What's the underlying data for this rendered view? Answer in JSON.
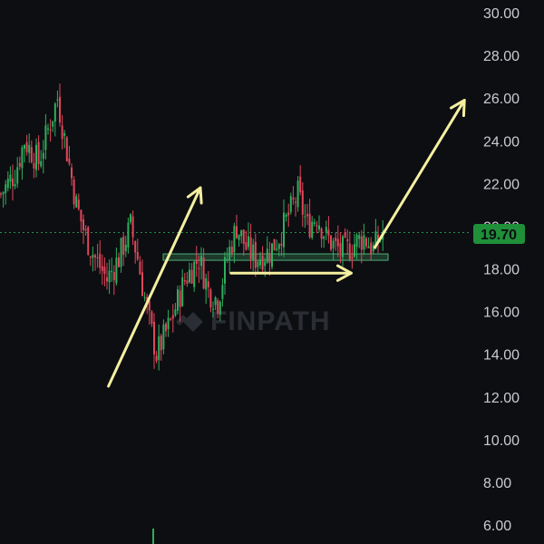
{
  "watermark": {
    "text": "FINPATH",
    "icon": "finpath-logo-icon"
  },
  "price_tag": {
    "value": "19.70",
    "color": "#1f8f3a"
  },
  "colors": {
    "background": "#0d0e12",
    "up_candle": "#2fae5c",
    "down_candle": "#e0475b",
    "annotation": "#f4f0a0",
    "current_price_line": "#2fae5c",
    "support_zone": "#2f6f4a"
  },
  "chart_data": {
    "type": "candlestick",
    "y_axis": {
      "position": "right",
      "min": 6,
      "max": 30,
      "ticks": [
        "30.00",
        "28.00",
        "26.00",
        "24.00",
        "22.00",
        "20.00",
        "18.00",
        "16.00",
        "14.00",
        "12.00",
        "10.00",
        "8.00",
        "6.00"
      ]
    },
    "current_price": 19.7,
    "support_zone": {
      "low": 18.4,
      "high": 18.7
    },
    "price_path": [
      [
        0,
        21.5
      ],
      [
        6,
        22.5
      ],
      [
        10,
        24.0
      ],
      [
        16,
        23.0
      ],
      [
        20,
        24.5
      ],
      [
        24,
        26.0
      ],
      [
        28,
        23.5
      ],
      [
        32,
        21.0
      ],
      [
        36,
        19.5
      ],
      [
        40,
        18.5
      ],
      [
        45,
        17.5
      ],
      [
        50,
        18.5
      ],
      [
        55,
        20.0
      ],
      [
        58,
        18.5
      ],
      [
        62,
        16.0
      ],
      [
        66,
        14.0
      ],
      [
        72,
        15.5
      ],
      [
        78,
        17.5
      ],
      [
        84,
        18.5
      ],
      [
        88,
        17.0
      ],
      [
        92,
        16.5
      ],
      [
        96,
        18.5
      ],
      [
        100,
        20.0
      ],
      [
        104,
        19.0
      ],
      [
        108,
        18.5
      ],
      [
        114,
        18.8
      ],
      [
        118,
        19.5
      ],
      [
        122,
        20.5
      ],
      [
        126,
        21.5
      ],
      [
        130,
        20.0
      ],
      [
        134,
        20.5
      ],
      [
        138,
        19.5
      ],
      [
        142,
        19.0
      ],
      [
        146,
        18.8
      ],
      [
        150,
        19.2
      ],
      [
        154,
        19.5
      ],
      [
        158,
        18.9
      ],
      [
        162,
        19.7
      ]
    ],
    "annotations": [
      {
        "type": "arrow",
        "label": "uptrend",
        "from": [
          46,
          12.5
        ],
        "to": [
          85,
          21.8
        ]
      },
      {
        "type": "arrow",
        "label": "consolidation",
        "from": [
          98,
          17.8
        ],
        "to": [
          149,
          17.8
        ]
      },
      {
        "type": "arrow",
        "label": "projected breakout",
        "from": [
          159,
          19.0
        ],
        "to": [
          197,
          25.9
        ]
      }
    ]
  }
}
